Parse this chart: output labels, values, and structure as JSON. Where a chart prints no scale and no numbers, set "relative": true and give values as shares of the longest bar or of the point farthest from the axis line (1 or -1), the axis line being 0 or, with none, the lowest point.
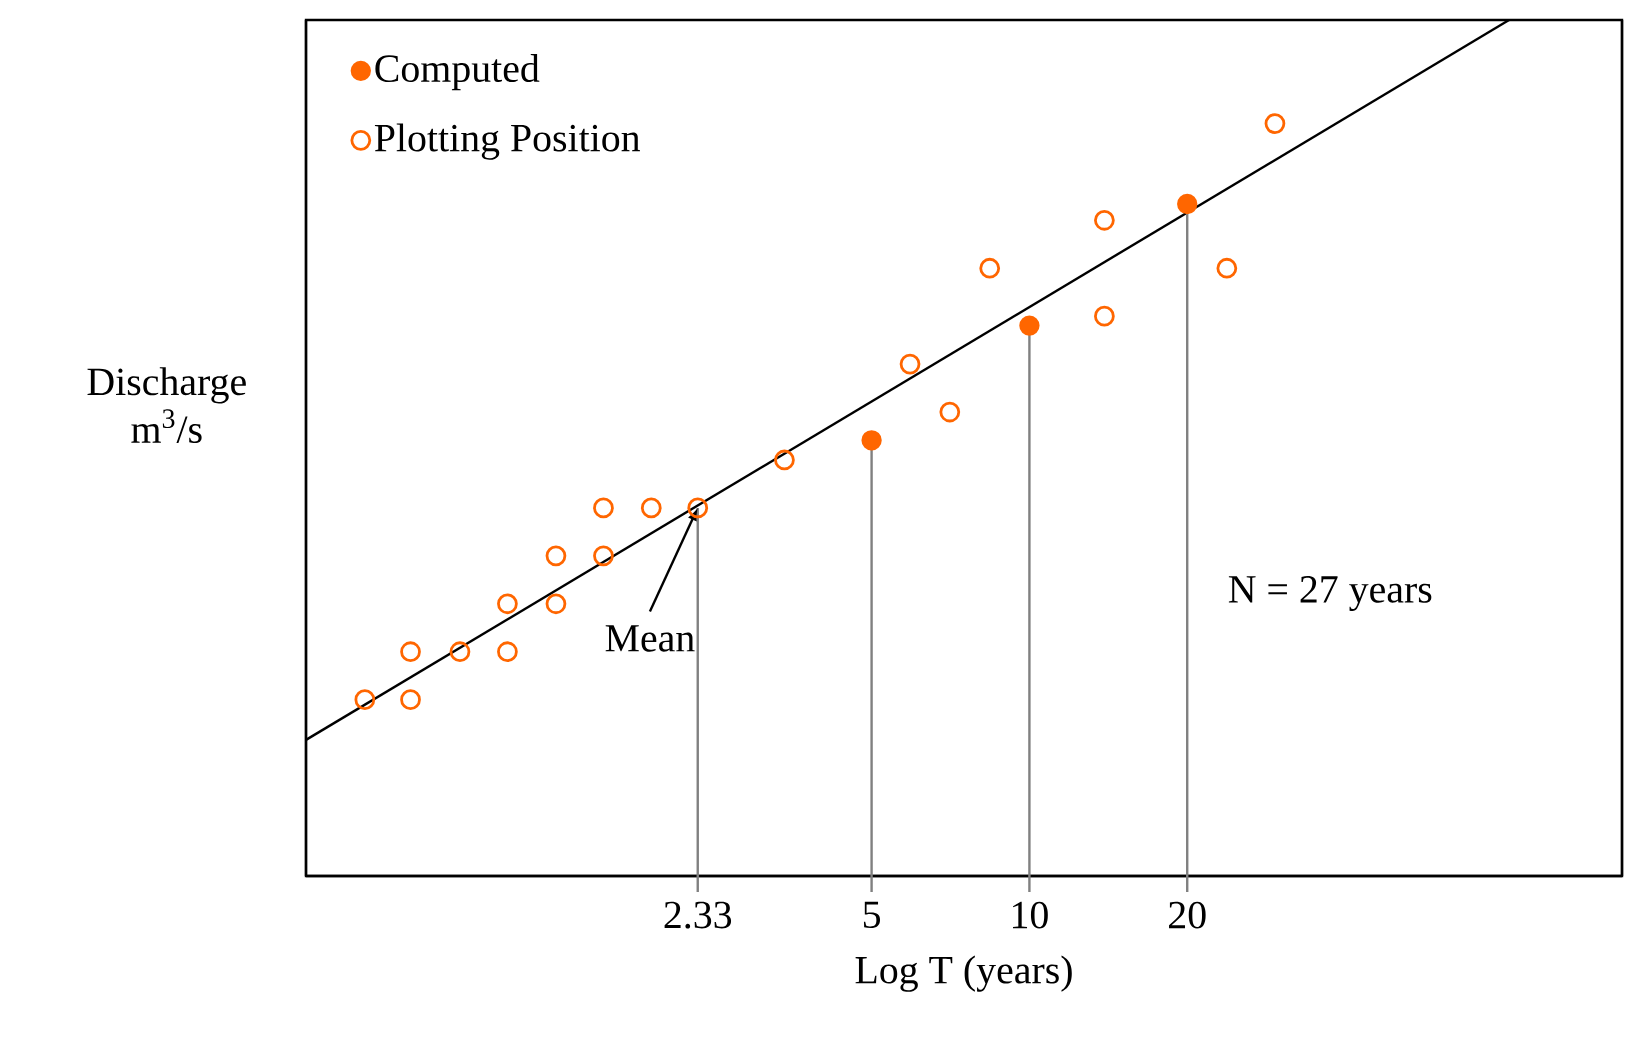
{
  "chart_data": {
    "type": "scatter",
    "xlabel": "Log T (years)",
    "ylabel": "Discharge m$^{3}$/s",
    "relative": true,
    "log": "x",
    "xlim": [
      0.417,
      135
    ],
    "xticks": [
      2.33,
      5,
      10,
      20
    ],
    "legend": "top left",
    "marker": "circle",
    "series": [
      {
        "name": "Computed",
        "color": "#ff6600",
        "x": [
          5,
          10,
          20
        ],
        "values": [
          0.509,
          0.643,
          0.785
        ]
      },
      {
        "name": "Plotting Position",
        "color": "#ff6600",
        "x": [
          0.54,
          0.66,
          0.66,
          0.82,
          1.01,
          1.01,
          1.25,
          1.25,
          1.54,
          1.54,
          1.9,
          2.33,
          3.41,
          5.92,
          7.05,
          8.4,
          13.9,
          13.9,
          23.8,
          29.4
        ],
        "values": [
          0.206,
          0.206,
          0.262,
          0.262,
          0.262,
          0.318,
          0.318,
          0.374,
          0.374,
          0.43,
          0.43,
          0.43,
          0.486,
          0.598,
          0.542,
          0.71,
          0.766,
          0.654,
          0.71,
          0.879
        ]
      },
      {
        "type": "line",
        "color": "#000000",
        "marker": "none",
        "x": [
          0.417,
          82.2
        ],
        "values": [
          0.159,
          1.0
        ]
      }
    ],
    "ref_lines": [
      {
        "axis": "x",
        "value": 2.33,
        "color": "#808080"
      },
      {
        "axis": "x",
        "value": 5,
        "color": "#808080"
      },
      {
        "axis": "x",
        "value": 10,
        "color": "#808080"
      },
      {
        "axis": "x",
        "value": 20,
        "color": "#808080"
      }
    ],
    "annotations": [
      {
        "text": "Mean",
        "x": 2.33,
        "y": 0.43
      },
      "N = 27 years"
    ]
  }
}
